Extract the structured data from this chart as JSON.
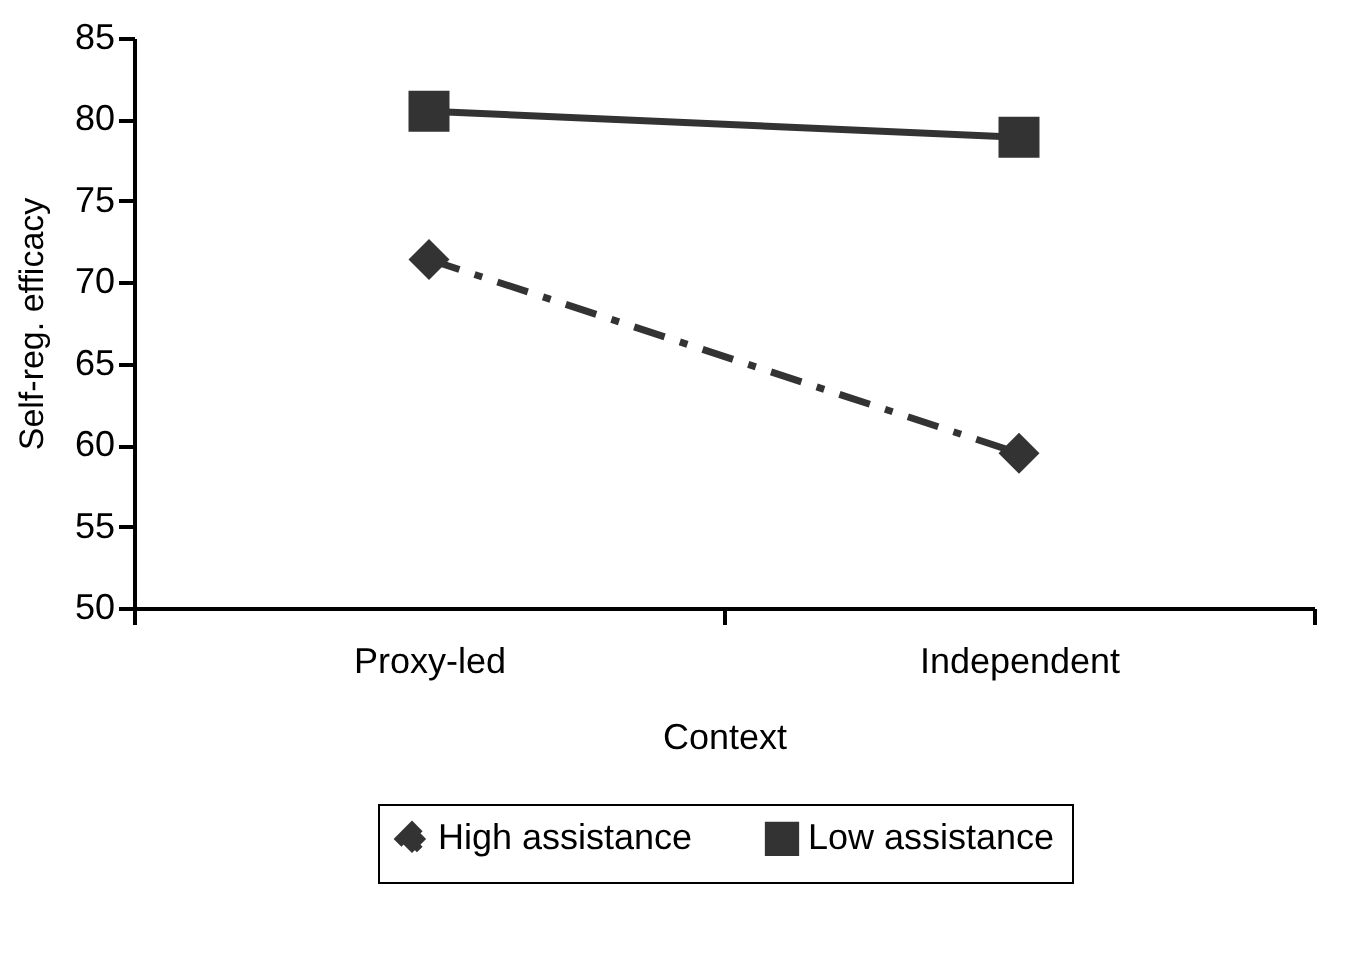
{
  "chart_data": {
    "type": "line",
    "xlabel": "Context",
    "ylabel": "Self-reg. efficacy",
    "categories": [
      "Proxy-led",
      "Independent"
    ],
    "series": [
      {
        "name": "High assistance",
        "color": "#333333",
        "values": [
          71.4,
          59.5
        ],
        "marker": "diamond",
        "line_style": "dashed"
      },
      {
        "name": "Low assistance",
        "color": "#333333",
        "values": [
          80.5,
          78.9
        ],
        "marker": "square",
        "line_style": "solid"
      }
    ],
    "ylim": [
      50,
      85
    ],
    "yticks": [
      50,
      55,
      60,
      65,
      70,
      75,
      80,
      85
    ],
    "grid": false,
    "legend": "bottom"
  }
}
